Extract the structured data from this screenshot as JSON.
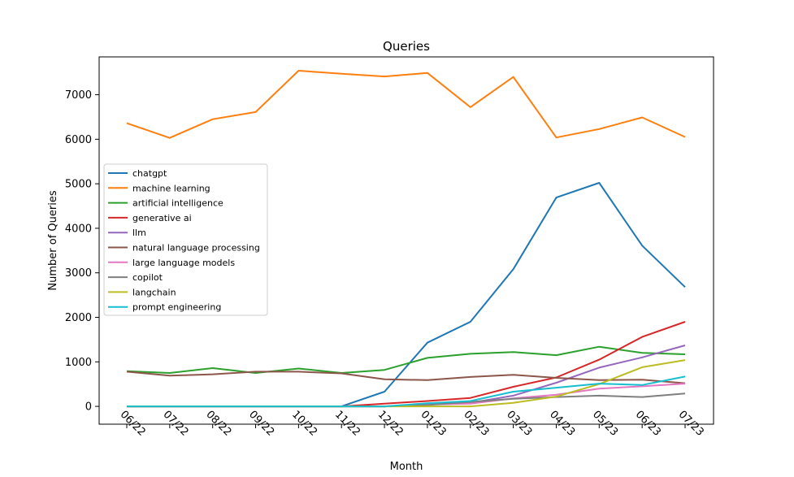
{
  "chart_data": {
    "type": "line",
    "title": "Queries",
    "xlabel": "Month",
    "ylabel": "Number of Queries",
    "categories": [
      "06/22",
      "07/22",
      "08/22",
      "09/22",
      "10/22",
      "11/22",
      "12/22",
      "01/23",
      "02/23",
      "03/23",
      "04/23",
      "05/23",
      "06/23",
      "07/23"
    ],
    "ylim": [
      -400,
      7850
    ],
    "yticks": [
      0,
      1000,
      2000,
      3000,
      4000,
      5000,
      6000,
      7000
    ],
    "grid": false,
    "legend_position": "center-left",
    "series": [
      {
        "name": "chatgpt",
        "color": "#1f77b4",
        "values": [
          0,
          0,
          0,
          0,
          0,
          0,
          330,
          1430,
          1900,
          3080,
          4690,
          5020,
          3610,
          2680
        ]
      },
      {
        "name": "machine learning",
        "color": "#ff7f0e",
        "values": [
          6360,
          6030,
          6450,
          6610,
          7540,
          7470,
          7410,
          7490,
          6720,
          7400,
          6040,
          6230,
          6490,
          6050
        ]
      },
      {
        "name": "artificial intelligence",
        "color": "#2ca02c",
        "values": [
          790,
          750,
          860,
          750,
          850,
          750,
          820,
          1090,
          1180,
          1220,
          1150,
          1340,
          1200,
          1170
        ]
      },
      {
        "name": "generative ai",
        "color": "#d62728",
        "values": [
          0,
          0,
          0,
          0,
          0,
          0,
          60,
          120,
          190,
          440,
          650,
          1050,
          1560,
          1900
        ]
      },
      {
        "name": "llm",
        "color": "#9467bd",
        "values": [
          0,
          0,
          0,
          0,
          0,
          0,
          0,
          50,
          80,
          240,
          530,
          870,
          1100,
          1370
        ]
      },
      {
        "name": "natural language processing",
        "color": "#8c564b",
        "values": [
          780,
          690,
          720,
          780,
          780,
          740,
          610,
          590,
          660,
          710,
          640,
          590,
          600,
          520
        ]
      },
      {
        "name": "large language models",
        "color": "#e377c2",
        "values": [
          0,
          0,
          0,
          0,
          0,
          0,
          0,
          40,
          60,
          180,
          260,
          400,
          450,
          510
        ]
      },
      {
        "name": "copilot",
        "color": "#7f7f7f",
        "values": [
          0,
          0,
          0,
          0,
          0,
          0,
          0,
          30,
          100,
          170,
          210,
          240,
          210,
          290
        ]
      },
      {
        "name": "langchain",
        "color": "#bcbd22",
        "values": [
          0,
          0,
          0,
          0,
          0,
          0,
          0,
          0,
          0,
          80,
          220,
          500,
          880,
          1040
        ]
      },
      {
        "name": "prompt engineering",
        "color": "#17becf",
        "values": [
          0,
          0,
          0,
          0,
          0,
          0,
          0,
          70,
          120,
          330,
          420,
          510,
          480,
          670
        ]
      }
    ]
  }
}
